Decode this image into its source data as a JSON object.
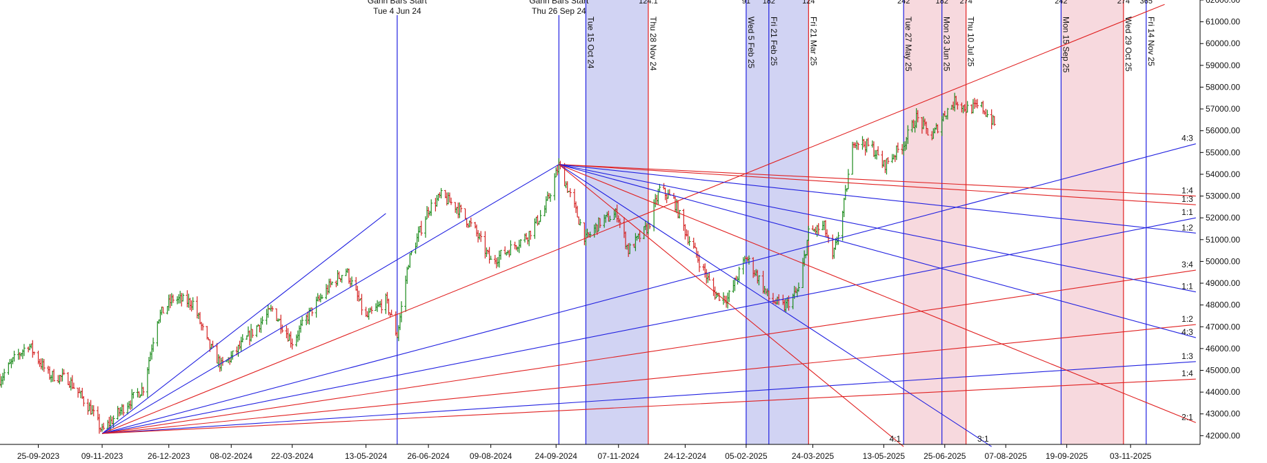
{
  "colors": {
    "blue": "#1f1fe0",
    "red": "#e01f1f",
    "blue_band": "#c6c8f0",
    "red_band": "#f5cfd6",
    "candle_up": "#1a8a1a",
    "candle_down": "#d42020",
    "text": "#111111"
  },
  "chart_data": {
    "type": "ohlc-bar",
    "title": "",
    "xlabel": "",
    "ylabel": "",
    "grid": false,
    "ylim": [
      41600,
      62000
    ],
    "xlim": [
      "2023-08-29",
      "2025-12-22"
    ],
    "x_ticks": [
      "25-09-2023",
      "09-11-2023",
      "26-12-2023",
      "08-02-2024",
      "22-03-2024",
      "13-05-2024",
      "26-06-2024",
      "09-08-2024",
      "24-09-2024",
      "07-11-2024",
      "24-12-2024",
      "05-02-2025",
      "24-03-2025",
      "13-05-2025",
      "25-06-2025",
      "07-08-2025",
      "19-09-2025",
      "03-11-2025"
    ],
    "y_ticks": [
      "42000.00",
      "43000.00",
      "44000.00",
      "45000.00",
      "46000.00",
      "47000.00",
      "48000.00",
      "49000.00",
      "50000.00",
      "51000.00",
      "52000.00",
      "53000.00",
      "54000.00",
      "55000.00",
      "56000.00",
      "57000.00",
      "58000.00",
      "59000.00",
      "60000.00",
      "61000.00",
      "62000.00"
    ],
    "price_path": [
      [
        "2023-08-29",
        44600
      ],
      [
        "2023-09-08",
        45500
      ],
      [
        "2023-09-18",
        46200
      ],
      [
        "2023-10-02",
        44800
      ],
      [
        "2023-10-16",
        44600
      ],
      [
        "2023-11-01",
        43200
      ],
      [
        "2023-11-09",
        42200
      ],
      [
        "2023-11-24",
        43300
      ],
      [
        "2023-12-08",
        44200
      ],
      [
        "2023-12-18",
        47400
      ],
      [
        "2023-12-29",
        48300
      ],
      [
        "2024-01-12",
        48100
      ],
      [
        "2024-01-22",
        46300
      ],
      [
        "2024-02-01",
        45200
      ],
      [
        "2024-02-08",
        45600
      ],
      [
        "2024-02-26",
        47000
      ],
      [
        "2024-03-08",
        47800
      ],
      [
        "2024-03-22",
        46300
      ],
      [
        "2024-04-05",
        47800
      ],
      [
        "2024-04-19",
        49000
      ],
      [
        "2024-04-29",
        49600
      ],
      [
        "2024-05-13",
        47400
      ],
      [
        "2024-05-27",
        48200
      ],
      [
        "2024-06-04",
        46600
      ],
      [
        "2024-06-12",
        50000
      ],
      [
        "2024-06-26",
        52400
      ],
      [
        "2024-07-05",
        53000
      ],
      [
        "2024-07-16",
        52500
      ],
      [
        "2024-07-29",
        51400
      ],
      [
        "2024-08-09",
        50000
      ],
      [
        "2024-08-21",
        50500
      ],
      [
        "2024-09-04",
        51200
      ],
      [
        "2024-09-16",
        52400
      ],
      [
        "2024-09-26",
        54400
      ],
      [
        "2024-10-03",
        53200
      ],
      [
        "2024-10-15",
        51000
      ],
      [
        "2024-10-25",
        51800
      ],
      [
        "2024-11-06",
        52200
      ],
      [
        "2024-11-14",
        50500
      ],
      [
        "2024-11-28",
        51600
      ],
      [
        "2024-12-06",
        53300
      ],
      [
        "2024-12-16",
        52800
      ],
      [
        "2024-12-24",
        51400
      ],
      [
        "2025-01-03",
        50000
      ],
      [
        "2025-01-14",
        48500
      ],
      [
        "2025-01-23",
        48300
      ],
      [
        "2025-02-05",
        50200
      ],
      [
        "2025-02-14",
        49200
      ],
      [
        "2025-02-21",
        48300
      ],
      [
        "2025-03-04",
        47900
      ],
      [
        "2025-03-14",
        48700
      ],
      [
        "2025-03-21",
        51300
      ],
      [
        "2025-04-01",
        51600
      ],
      [
        "2025-04-07",
        50100
      ],
      [
        "2025-04-14",
        52200
      ],
      [
        "2025-04-22",
        55600
      ],
      [
        "2025-05-05",
        55200
      ],
      [
        "2025-05-13",
        54400
      ],
      [
        "2025-05-27",
        55400
      ],
      [
        "2025-06-05",
        56600
      ],
      [
        "2025-06-16",
        55700
      ],
      [
        "2025-06-25",
        56800
      ],
      [
        "2025-07-03",
        57400
      ],
      [
        "2025-07-10",
        57000
      ],
      [
        "2025-07-21",
        57100
      ],
      [
        "2025-07-30",
        56300
      ]
    ],
    "time_markers": [
      {
        "date": "2024-06-04",
        "label": "Tue 4 Jun 24",
        "color": "blue",
        "top_label": "Gann Bars Start",
        "full_height": true
      },
      {
        "date": "2024-09-26",
        "label": "Thu 26 Sep 24",
        "color": "blue",
        "top_label": "Gann Bars Start",
        "full_height": true
      },
      {
        "date": "2024-10-15",
        "label": "Tue 15 Oct 24",
        "color": "blue",
        "top_label": ""
      },
      {
        "date": "2024-11-28",
        "label": "Thu 28 Nov 24",
        "color": "red",
        "top_label": "124.1"
      },
      {
        "date": "2025-02-05",
        "label": "Wed 5 Feb 25",
        "color": "blue",
        "top_label": "91"
      },
      {
        "date": "2025-02-21",
        "label": "Fri 21 Feb 25",
        "color": "blue",
        "top_label": "182"
      },
      {
        "date": "2025-03-21",
        "label": "Fri 21 Mar 25",
        "color": "red",
        "top_label": "124"
      },
      {
        "date": "2025-05-27",
        "label": "Tue 27 May 25",
        "color": "blue",
        "top_label": "242"
      },
      {
        "date": "2025-06-23",
        "label": "Mon 23 Jun 25",
        "color": "blue",
        "top_label": "182"
      },
      {
        "date": "2025-07-10",
        "label": "Thu 10 Jul 25",
        "color": "red",
        "top_label": "274"
      },
      {
        "date": "2025-09-15",
        "label": "Mon 15 Sep 25",
        "color": "blue",
        "top_label": "242"
      },
      {
        "date": "2025-10-29",
        "label": "Wed 29 Oct 25",
        "color": "red",
        "top_label": "274"
      },
      {
        "date": "2025-11-14",
        "label": "Fri 14 Nov 25",
        "color": "blue",
        "top_label": "365"
      }
    ],
    "bands": [
      {
        "from": "2024-10-15",
        "to": "2024-11-28",
        "color": "blue_band"
      },
      {
        "from": "2025-02-05",
        "to": "2025-03-21",
        "color": "blue_band"
      },
      {
        "from": "2025-05-27",
        "to": "2025-07-10",
        "color": "red_band"
      },
      {
        "from": "2025-09-15",
        "to": "2025-10-29",
        "color": "red_band"
      }
    ],
    "fan_lines": [
      {
        "origin": [
          "2023-11-09",
          42100
        ],
        "target": [
          "2025-11-27",
          61800
        ],
        "color": "red",
        "label": ""
      },
      {
        "origin": [
          "2023-11-09",
          42100
        ],
        "target": [
          "2024-09-26",
          54450
        ],
        "color": "blue",
        "label": ""
      },
      {
        "origin": [
          "2023-11-09",
          42100
        ],
        "target": [
          "2024-05-27",
          52200
        ],
        "color": "blue",
        "label": ""
      },
      {
        "origin": [
          "2023-11-09",
          42100
        ],
        "target": [
          "2025-12-19",
          55400
        ],
        "color": "blue",
        "label": "4:3"
      },
      {
        "origin": [
          "2023-11-09",
          42100
        ],
        "target": [
          "2025-12-19",
          52000
        ],
        "color": "blue",
        "label": "1:1"
      },
      {
        "origin": [
          "2023-11-09",
          42100
        ],
        "target": [
          "2025-12-19",
          49600
        ],
        "color": "red",
        "label": "3:4"
      },
      {
        "origin": [
          "2023-11-09",
          42100
        ],
        "target": [
          "2025-12-19",
          47100
        ],
        "color": "red",
        "label": "1:2"
      },
      {
        "origin": [
          "2023-11-09",
          42100
        ],
        "target": [
          "2025-12-19",
          45400
        ],
        "color": "blue",
        "label": "1:3"
      },
      {
        "origin": [
          "2023-11-09",
          42100
        ],
        "target": [
          "2025-12-19",
          44600
        ],
        "color": "red",
        "label": "1:4"
      },
      {
        "origin": [
          "2024-09-26",
          54450
        ],
        "target": [
          "2025-12-19",
          53000
        ],
        "color": "red",
        "label": "1:4"
      },
      {
        "origin": [
          "2024-09-26",
          54450
        ],
        "target": [
          "2025-12-19",
          52600
        ],
        "color": "red",
        "label": "1:3"
      },
      {
        "origin": [
          "2024-09-26",
          54450
        ],
        "target": [
          "2025-12-19",
          51300
        ],
        "color": "blue",
        "label": "1:2"
      },
      {
        "origin": [
          "2024-09-26",
          54450
        ],
        "target": [
          "2025-12-19",
          48600
        ],
        "color": "blue",
        "label": "1:1"
      },
      {
        "origin": [
          "2024-09-26",
          54450
        ],
        "target": [
          "2025-12-19",
          46500
        ],
        "color": "blue",
        "label": "4:3"
      },
      {
        "origin": [
          "2024-09-26",
          54450
        ],
        "target": [
          "2025-12-19",
          42600
        ],
        "color": "red",
        "label": "2:1"
      },
      {
        "origin": [
          "2024-09-26",
          54450
        ],
        "target": [
          "2025-07-28",
          41500
        ],
        "color": "blue",
        "label": "3:1"
      },
      {
        "origin": [
          "2024-09-26",
          54450
        ],
        "target": [
          "2025-05-27",
          41500
        ],
        "color": "red",
        "label": "4:1"
      }
    ]
  }
}
